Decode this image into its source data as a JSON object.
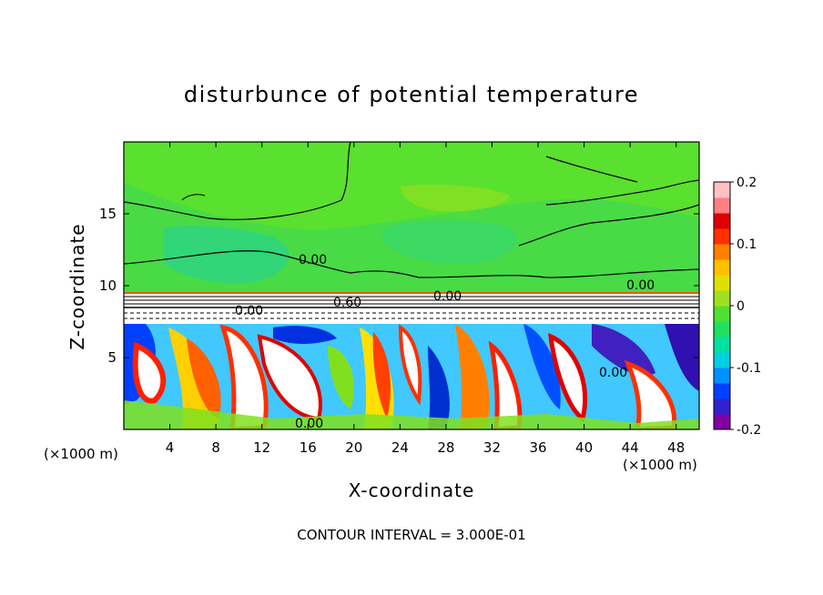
{
  "chart_data": {
    "type": "heatmap",
    "title": "disturbunce of potential temperature",
    "xlabel": "X-coordinate",
    "ylabel": "Z-coordinate",
    "x_unit": "(×1000 m)",
    "z_unit": "(×1000 m)",
    "xlim": [
      0,
      50
    ],
    "ylim": [
      0,
      20
    ],
    "x_ticks": [
      4,
      8,
      12,
      16,
      20,
      24,
      28,
      32,
      36,
      40,
      44,
      48
    ],
    "y_ticks": [
      5,
      10,
      15
    ],
    "colorbar": {
      "ticks": [
        -0.2,
        -0.1,
        0,
        0.1,
        0.2
      ],
      "tick_labels": [
        "-0.2",
        "-0.1",
        "0",
        "0.1",
        "0.2"
      ],
      "colors": [
        "#8000a0",
        "#3020d0",
        "#0040ff",
        "#0090ff",
        "#00d0e0",
        "#00e0a0",
        "#20e060",
        "#50e030",
        "#a0e020",
        "#e0e000",
        "#ffc000",
        "#ff8000",
        "#ff3000",
        "#e00000",
        "#ff8080",
        "#ffc0c0"
      ]
    },
    "contour_labels": [
      "0.00",
      "0.00",
      "0.00",
      "0.00",
      "0.60",
      "0.00",
      "0.00"
    ],
    "footer": "CONTOUR INTERVAL = 3.000E-01"
  }
}
